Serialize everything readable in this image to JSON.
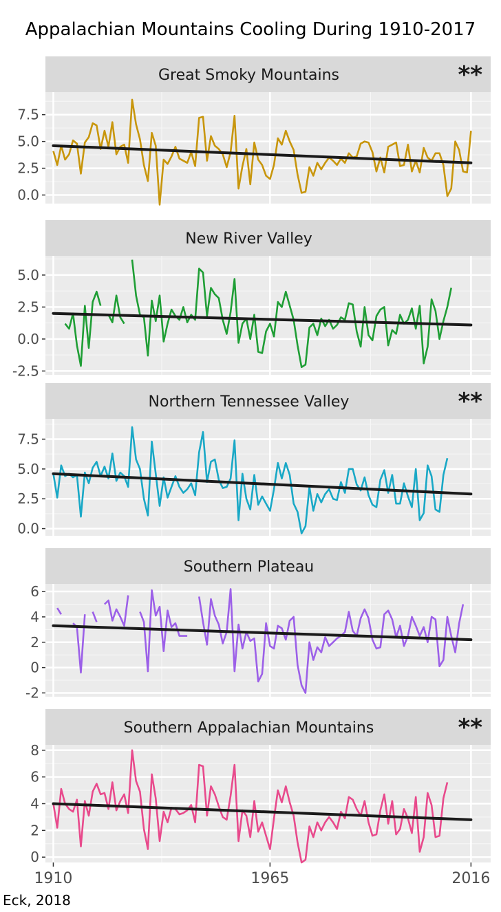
{
  "title": "Appalachian Mountains Cooling During 1910-2017",
  "credit": "Eck, 2018",
  "chart_data": {
    "type": "line",
    "x_ticks": [
      1910,
      1965,
      2016
    ],
    "xlim": [
      1908,
      2021
    ],
    "panels": [
      {
        "title": "Great Smoky Mountains",
        "significance": "**",
        "color": "#c8960c",
        "ylim": [
          -0.8,
          9.6
        ],
        "y_ticks": [
          0.0,
          2.5,
          5.0,
          7.5
        ],
        "y_tick_labels": [
          "0.0",
          "2.5",
          "5.0",
          "7.5"
        ],
        "trend": {
          "start": [
            1910,
            4.6
          ],
          "end": [
            2016,
            3.0
          ]
        },
        "values": [
          4.1,
          2.8,
          4.6,
          3.3,
          3.8,
          5.1,
          4.8,
          2.0,
          4.9,
          5.4,
          6.7,
          6.5,
          4.3,
          6.0,
          4.5,
          6.8,
          3.8,
          4.5,
          4.7,
          3.0,
          8.9,
          6.6,
          5.2,
          2.8,
          1.3,
          5.8,
          4.6,
          -0.9,
          3.3,
          2.9,
          3.6,
          4.5,
          3.4,
          3.2,
          3.0,
          4.0,
          2.7,
          7.2,
          7.3,
          3.2,
          5.5,
          4.6,
          4.3,
          3.8,
          2.6,
          4.0,
          7.4,
          0.6,
          2.7,
          4.3,
          1.0,
          4.9,
          3.3,
          2.8,
          1.8,
          1.5,
          2.8,
          5.3,
          4.7,
          6.0,
          5.0,
          4.2,
          1.9,
          0.2,
          0.3,
          2.6,
          1.8,
          3.0,
          2.4,
          3.0,
          3.5,
          3.2,
          2.8,
          3.4,
          3.0,
          3.9,
          3.5,
          3.6,
          4.8,
          5.0,
          4.9,
          4.0,
          2.2,
          3.5,
          2.1,
          4.5,
          4.7,
          4.9,
          2.7,
          2.8,
          4.7,
          2.2,
          3.2,
          2.1,
          4.4,
          3.5,
          3.2,
          3.9,
          3.9,
          2.8,
          -0.1,
          0.6,
          5.0,
          4.2,
          2.2,
          2.1,
          6.0
        ]
      },
      {
        "title": "New River Valley",
        "significance": "",
        "color": "#1f9e35",
        "ylim": [
          -2.8,
          6.5
        ],
        "y_ticks": [
          -2.5,
          0.0,
          2.5,
          5.0
        ],
        "y_tick_labels": [
          "-2.5",
          "0.0",
          "2.5",
          "5.0"
        ],
        "trend": {
          "start": [
            1910,
            2.0
          ],
          "end": [
            2016,
            1.1
          ]
        },
        "values": [
          null,
          null,
          null,
          1.2,
          0.8,
          2.0,
          -0.5,
          -2.1,
          2.6,
          -0.7,
          2.9,
          3.7,
          2.6,
          null,
          1.9,
          1.3,
          3.4,
          1.7,
          1.2,
          null,
          6.2,
          3.4,
          1.9,
          1.7,
          -1.3,
          3.0,
          1.4,
          3.4,
          -0.2,
          1.2,
          2.3,
          1.8,
          1.5,
          2.5,
          1.3,
          1.9,
          1.5,
          5.5,
          5.2,
          1.8,
          4.0,
          3.5,
          3.2,
          1.5,
          0.4,
          2.1,
          4.7,
          -0.3,
          1.2,
          1.6,
          0.0,
          1.9,
          -1.0,
          -1.1,
          0.6,
          1.2,
          0.2,
          2.9,
          2.5,
          3.7,
          2.6,
          1.5,
          -0.5,
          -2.2,
          -2.0,
          0.9,
          1.2,
          0.3,
          1.6,
          1.0,
          1.5,
          0.8,
          1.1,
          1.7,
          1.5,
          2.8,
          2.7,
          0.6,
          -0.6,
          2.5,
          0.3,
          -0.1,
          1.8,
          2.3,
          2.5,
          -0.5,
          0.7,
          0.4,
          1.9,
          1.2,
          1.5,
          2.4,
          0.8,
          2.6,
          -1.9,
          -0.6,
          3.1,
          2.2,
          0.0,
          1.4,
          2.5,
          4.0
        ]
      },
      {
        "title": "Northern Tennessee Valley",
        "significance": "**",
        "color": "#19a8c6",
        "ylim": [
          -0.6,
          9.2
        ],
        "y_ticks": [
          0.0,
          2.5,
          5.0,
          7.5
        ],
        "y_tick_labels": [
          "0.0",
          "2.5",
          "5.0",
          "7.5"
        ],
        "trend": {
          "start": [
            1910,
            4.6
          ],
          "end": [
            2016,
            2.9
          ]
        },
        "values": [
          4.6,
          2.6,
          5.3,
          4.4,
          4.6,
          4.3,
          4.5,
          1.0,
          4.7,
          3.8,
          5.1,
          5.6,
          4.4,
          5.2,
          4.2,
          6.3,
          4.0,
          4.7,
          4.4,
          3.5,
          8.5,
          5.8,
          5.0,
          2.5,
          1.1,
          7.3,
          4.6,
          1.9,
          4.3,
          2.6,
          3.5,
          4.4,
          3.5,
          3.0,
          3.3,
          3.8,
          2.8,
          6.4,
          8.1,
          3.9,
          5.6,
          5.8,
          4.1,
          3.4,
          3.5,
          4.2,
          7.4,
          0.7,
          4.6,
          2.5,
          1.6,
          4.5,
          2.0,
          2.7,
          2.1,
          1.5,
          3.3,
          5.5,
          4.2,
          5.5,
          4.5,
          2.1,
          1.4,
          -0.4,
          0.2,
          3.5,
          1.5,
          2.9,
          2.2,
          2.9,
          3.3,
          2.5,
          2.4,
          3.9,
          3.0,
          5.0,
          5.0,
          3.7,
          3.2,
          4.3,
          2.8,
          2.0,
          1.8,
          4.1,
          4.9,
          3.0,
          4.5,
          2.1,
          2.1,
          3.8,
          2.7,
          1.8,
          5.0,
          0.7,
          1.3,
          5.3,
          4.4,
          1.6,
          1.4,
          4.5,
          5.9
        ]
      },
      {
        "title": "Southern Plateau",
        "significance": "",
        "color": "#9c60e8",
        "ylim": [
          -2.3,
          6.6
        ],
        "y_ticks": [
          -2,
          0,
          2,
          4,
          6
        ],
        "y_tick_labels": [
          "-2",
          "0",
          "2",
          "4",
          "6"
        ],
        "trend": {
          "start": [
            1910,
            3.3
          ],
          "end": [
            2016,
            2.2
          ]
        },
        "values": [
          null,
          4.7,
          4.2,
          null,
          null,
          3.5,
          3.2,
          -0.4,
          4.2,
          null,
          4.4,
          3.6,
          null,
          5.0,
          5.3,
          3.7,
          4.6,
          4.0,
          3.3,
          5.7,
          null,
          null,
          4.4,
          3.6,
          -0.3,
          6.1,
          4.1,
          4.8,
          1.3,
          4.5,
          3.2,
          3.5,
          2.5,
          2.5,
          2.5,
          null,
          null,
          5.6,
          3.6,
          1.8,
          5.4,
          4.1,
          3.4,
          1.9,
          2.8,
          6.2,
          -0.3,
          3.4,
          1.5,
          2.8,
          2.1,
          2.3,
          -1.1,
          -0.5,
          3.5,
          1.7,
          1.5,
          3.3,
          3.1,
          2.2,
          3.7,
          4.0,
          0.2,
          -1.4,
          -2.0,
          2.0,
          0.6,
          1.6,
          1.2,
          2.4,
          1.7,
          2.0,
          2.3,
          2.5,
          2.8,
          4.4,
          2.9,
          2.5,
          3.9,
          4.6,
          3.9,
          2.2,
          1.5,
          1.6,
          4.2,
          4.5,
          3.8,
          2.4,
          3.3,
          1.7,
          2.5,
          4.0,
          3.3,
          2.5,
          3.2,
          2.0,
          4.0,
          3.8,
          0.1,
          0.6,
          4.0,
          2.5,
          1.2,
          3.5,
          5.0
        ]
      },
      {
        "title": "Southern Appalachian Mountains",
        "significance": "**",
        "color": "#e84a8c",
        "ylim": [
          -0.4,
          8.4
        ],
        "y_ticks": [
          0,
          2,
          4,
          6,
          8
        ],
        "y_tick_labels": [
          "0",
          "2",
          "4",
          "6",
          "8"
        ],
        "trend": {
          "start": [
            1910,
            4.0
          ],
          "end": [
            2016,
            2.8
          ]
        },
        "values": [
          4.0,
          2.2,
          5.1,
          4.0,
          3.6,
          3.4,
          4.3,
          0.8,
          4.2,
          3.1,
          4.9,
          5.5,
          4.7,
          4.8,
          3.6,
          5.6,
          3.5,
          4.2,
          4.7,
          3.3,
          8.0,
          5.7,
          4.9,
          2.1,
          0.6,
          6.2,
          4.4,
          1.2,
          3.4,
          2.6,
          3.7,
          3.6,
          3.2,
          3.3,
          3.5,
          3.9,
          2.6,
          6.9,
          6.8,
          3.1,
          5.3,
          4.7,
          3.8,
          3.0,
          2.8,
          4.6,
          6.9,
          1.2,
          3.5,
          3.1,
          1.5,
          4.2,
          1.9,
          2.6,
          1.6,
          0.6,
          2.9,
          5.0,
          4.1,
          5.3,
          4.1,
          3.1,
          1.1,
          -0.4,
          -0.2,
          2.3,
          1.5,
          2.6,
          2.0,
          2.6,
          3.0,
          2.6,
          2.1,
          3.4,
          2.9,
          4.5,
          4.3,
          3.6,
          3.1,
          4.2,
          2.6,
          1.6,
          1.7,
          3.5,
          4.7,
          2.5,
          4.2,
          1.7,
          2.1,
          3.6,
          2.9,
          1.8,
          4.5,
          0.4,
          1.5,
          4.8,
          3.9,
          1.5,
          1.6,
          4.4,
          5.6
        ]
      }
    ]
  }
}
